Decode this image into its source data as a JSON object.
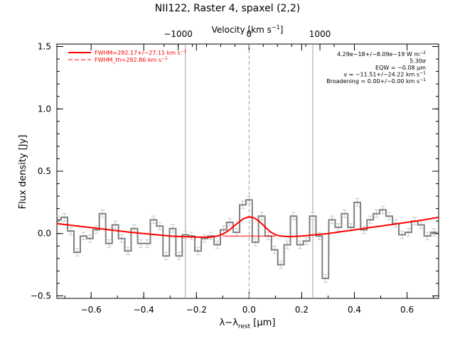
{
  "chart_data": {
    "type": "line",
    "title": "NII122, Raster 4, spaxel (2,2)",
    "xlabel": "λ−λ",
    "xlabel_sub": "rest",
    "xlabel_unit": " [μm]",
    "ylabel": "Flux density [Jy]",
    "top_axis_label": "Velocity [km s",
    "top_axis_label_sup": "−1",
    "top_axis_label_end": "]",
    "xlim": [
      -0.73,
      0.72
    ],
    "ylim": [
      -0.52,
      1.52
    ],
    "x_ticks": [
      -0.6,
      -0.4,
      -0.2,
      0.0,
      0.2,
      0.4,
      0.6
    ],
    "x_tick_labels": [
      "−0.6",
      "−0.4",
      "−0.2",
      "0.0",
      "0.2",
      "0.4",
      "0.6"
    ],
    "y_ticks": [
      -0.5,
      0.0,
      0.5,
      1.0,
      1.5
    ],
    "y_tick_labels": [
      "−0.5",
      "0.0",
      "0.5",
      "1.0",
      "1.5"
    ],
    "top_ticks_x": [
      -0.2692,
      0.0,
      0.2692
    ],
    "top_tick_labels": [
      "−1000",
      "0",
      "1000"
    ],
    "vertical_lines": [
      -0.242,
      0.242
    ],
    "center_line": 0.0,
    "legend": [
      {
        "label": "FWHM=292.17+/−27.11 km s",
        "sup": "−1",
        "style": "solid"
      },
      {
        "label": "FWHM_th=292.86 km s",
        "sup": "−1",
        "style": "dashed"
      }
    ],
    "annotations": [
      {
        "text": "4.29e−18+/−8.09e−19 W m",
        "sup": "−2"
      },
      {
        "text": "5.30σ",
        "sup": ""
      },
      {
        "text": "EQW = −0.08 μm",
        "sup": ""
      },
      {
        "text": "v = −11.51+/−24.22 km s",
        "sup": "−1"
      },
      {
        "text": "Broadening = 0.00+/−0.00 km s",
        "sup": "−1"
      }
    ],
    "spectrum": {
      "name": "",
      "bin_width": 0.0242,
      "x": [
        -0.726,
        -0.702,
        -0.677,
        -0.653,
        -0.629,
        -0.605,
        -0.581,
        -0.557,
        -0.532,
        -0.508,
        -0.484,
        -0.46,
        -0.436,
        -0.411,
        -0.387,
        -0.363,
        -0.339,
        -0.315,
        -0.29,
        -0.266,
        -0.242,
        -0.218,
        -0.194,
        -0.169,
        -0.145,
        -0.121,
        -0.097,
        -0.073,
        -0.048,
        -0.024,
        0.0,
        0.024,
        0.048,
        0.073,
        0.097,
        0.121,
        0.145,
        0.169,
        0.194,
        0.218,
        0.242,
        0.266,
        0.29,
        0.315,
        0.339,
        0.363,
        0.387,
        0.411,
        0.436,
        0.46,
        0.484,
        0.508,
        0.532,
        0.557,
        0.581,
        0.605,
        0.629,
        0.653,
        0.677,
        0.702
      ],
      "y": [
        0.11,
        0.13,
        0.02,
        -0.15,
        -0.02,
        -0.04,
        0.03,
        0.16,
        -0.08,
        0.07,
        -0.04,
        -0.14,
        0.04,
        -0.08,
        -0.08,
        0.11,
        0.06,
        -0.18,
        0.04,
        -0.18,
        -0.01,
        -0.02,
        -0.14,
        -0.04,
        -0.02,
        -0.09,
        0.03,
        0.09,
        0.01,
        0.23,
        0.27,
        -0.07,
        0.14,
        -0.02,
        -0.13,
        -0.25,
        -0.09,
        0.14,
        -0.09,
        -0.06,
        0.14,
        -0.02,
        -0.36,
        0.11,
        0.05,
        0.16,
        0.05,
        0.25,
        0.03,
        0.11,
        0.16,
        0.19,
        0.14,
        0.08,
        -0.01,
        0.01,
        0.1,
        0.07,
        -0.02,
        0.01
      ],
      "errors": [
        0.03,
        0.03,
        0.03,
        0.03,
        0.03,
        0.03,
        0.03,
        0.03,
        0.03,
        0.03,
        0.03,
        0.03,
        0.03,
        0.03,
        0.03,
        0.03,
        0.03,
        0.03,
        0.03,
        0.03,
        0.03,
        0.03,
        0.03,
        0.03,
        0.03,
        0.03,
        0.03,
        0.03,
        0.03,
        0.03,
        0.03,
        0.03,
        0.03,
        0.03,
        0.03,
        0.03,
        0.03,
        0.03,
        0.03,
        0.03,
        0.03,
        0.03,
        0.03,
        0.03,
        0.03,
        0.03,
        0.03,
        0.03,
        0.03,
        0.03,
        0.03,
        0.03,
        0.03,
        0.03,
        0.03,
        0.03,
        0.03,
        0.03,
        0.03,
        0.03
      ]
    },
    "fit": {
      "name": "",
      "x": [
        -0.73,
        -0.65,
        -0.55,
        -0.45,
        -0.35,
        -0.3,
        -0.25,
        -0.2,
        -0.15,
        -0.12,
        -0.1,
        -0.08,
        -0.06,
        -0.04,
        -0.02,
        0.0,
        0.02,
        0.04,
        0.06,
        0.08,
        0.1,
        0.12,
        0.15,
        0.2,
        0.25,
        0.3,
        0.35,
        0.4,
        0.45,
        0.5,
        0.55,
        0.6,
        0.65,
        0.72
      ],
      "y": [
        0.08,
        0.06,
        0.035,
        0.01,
        -0.01,
        -0.02,
        -0.025,
        -0.028,
        -0.03,
        -0.02,
        -0.005,
        0.02,
        0.055,
        0.09,
        0.12,
        0.135,
        0.125,
        0.095,
        0.055,
        0.015,
        -0.01,
        -0.02,
        -0.025,
        -0.02,
        -0.01,
        0.0,
        0.015,
        0.03,
        0.045,
        0.06,
        0.075,
        0.09,
        0.105,
        0.13
      ]
    },
    "baseline": {
      "name": "",
      "x": [
        -0.1,
        0.1
      ],
      "y": [
        -0.02,
        -0.02
      ]
    },
    "colors": {
      "spectrum": "#808080",
      "errorbars": "#c8c8c8",
      "fit": "#ff0000",
      "vlines": "#a0a0a0",
      "axes": "#000000"
    },
    "grid": false,
    "legend_position": "top-left"
  }
}
